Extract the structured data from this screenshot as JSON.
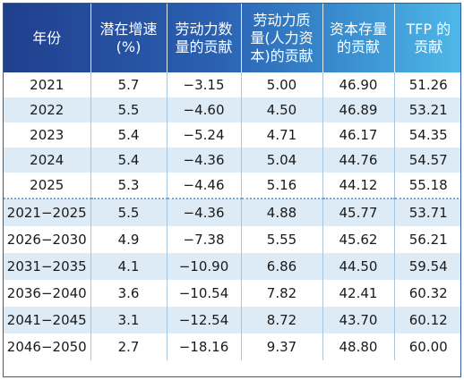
{
  "table": {
    "headers": [
      "年份",
      "潜在增速(%)",
      "劳动力数量的贡献",
      "劳动力质量(人力资本)的贡献",
      "资本存量的贡献",
      "TFP 的贡献"
    ],
    "header_lines": [
      [
        "年份"
      ],
      [
        "潜在增速",
        "(%)"
      ],
      [
        "劳动力数",
        "量的贡献"
      ],
      [
        "劳动力质",
        "量(人力资",
        "本)的贡献"
      ],
      [
        "资本存量",
        "的贡献"
      ],
      [
        "TFP 的",
        "贡献"
      ]
    ],
    "rows": [
      [
        "2021",
        "5.7",
        "−3.15",
        "5.00",
        "46.90",
        "51.26"
      ],
      [
        "2022",
        "5.5",
        "−4.60",
        "4.50",
        "46.89",
        "53.21"
      ],
      [
        "2023",
        "5.4",
        "−5.24",
        "4.71",
        "46.17",
        "54.35"
      ],
      [
        "2024",
        "5.4",
        "−4.36",
        "5.04",
        "44.76",
        "54.57"
      ],
      [
        "2025",
        "5.3",
        "−4.46",
        "5.16",
        "44.12",
        "55.18"
      ],
      [
        "2021−2025",
        "5.5",
        "−4.36",
        "4.88",
        "45.77",
        "53.71"
      ],
      [
        "2026−2030",
        "4.9",
        "−7.38",
        "5.55",
        "45.62",
        "56.21"
      ],
      [
        "2031−2035",
        "4.1",
        "−10.90",
        "6.86",
        "44.50",
        "59.54"
      ],
      [
        "2036−2040",
        "3.6",
        "−10.54",
        "7.82",
        "42.41",
        "60.32"
      ],
      [
        "2041−2045",
        "3.1",
        "−12.54",
        "8.72",
        "43.70",
        "60.12"
      ],
      [
        "2046−2050",
        "2.7",
        "−18.16",
        "9.37",
        "48.80",
        "60.00"
      ]
    ],
    "colors": {
      "header_start": "#203f8d",
      "header_end": "#4fb8e8",
      "row_stripe": "#dcebf6",
      "border": "#2f5da8"
    }
  }
}
